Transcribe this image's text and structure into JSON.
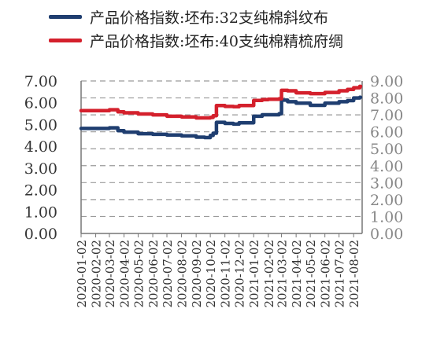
{
  "chart_data": {
    "type": "line",
    "title": "",
    "xlabel": "",
    "ylabel": "",
    "ylim_left": [
      0,
      7
    ],
    "ylim_right": [
      0,
      9
    ],
    "y_ticks_left": [
      "0.00",
      "1.00",
      "2.00",
      "3.00",
      "4.00",
      "5.00",
      "6.00",
      "7.00"
    ],
    "y_ticks_right": [
      "0.00",
      "1.00",
      "2.00",
      "3.00",
      "4.00",
      "5.00",
      "6.00",
      "7.00",
      "8.00",
      "9.00"
    ],
    "x_ticks": [
      "2020-01-02",
      "2020-02-02",
      "2020-03-02",
      "2020-04-02",
      "2020-05-02",
      "2020-06-02",
      "2020-07-02",
      "2020-08-02",
      "2020-09-02",
      "2020-10-02",
      "2020-11-02",
      "2020-12-02",
      "2021-01-02",
      "2021-02-02",
      "2021-03-02",
      "2021-04-02",
      "2021-05-02",
      "2021-06-02",
      "2021-07-02",
      "2021-08-02"
    ],
    "grid": "horizontal dashed",
    "legend_position": "top",
    "series": [
      {
        "name": "产品价格指数:坯布:32支纯棉斜纹布",
        "axis": "left",
        "color": "#1f3e70",
        "x": [
          "2020-01-02",
          "2020-02-20",
          "2020-03-02",
          "2020-03-20",
          "2020-04-02",
          "2020-05-02",
          "2020-06-02",
          "2020-07-02",
          "2020-08-02",
          "2020-09-02",
          "2020-09-20",
          "2020-10-02",
          "2020-10-08",
          "2020-10-15",
          "2020-11-02",
          "2020-11-20",
          "2020-12-02",
          "2021-01-02",
          "2021-01-20",
          "2021-02-02",
          "2021-02-25",
          "2021-03-02",
          "2021-03-15",
          "2021-04-02",
          "2021-05-02",
          "2021-06-02",
          "2021-07-02",
          "2021-07-20",
          "2021-08-02",
          "2021-08-15"
        ],
        "values": [
          4.82,
          4.82,
          4.85,
          4.72,
          4.65,
          4.58,
          4.55,
          4.52,
          4.48,
          4.42,
          4.4,
          4.5,
          4.6,
          5.1,
          5.05,
          5.02,
          5.08,
          5.38,
          5.45,
          5.45,
          5.5,
          6.12,
          6.05,
          5.98,
          5.88,
          5.98,
          6.05,
          6.1,
          6.22,
          6.25
        ]
      },
      {
        "name": "产品价格指数:坯布:40支纯棉精梳府绸",
        "axis": "right",
        "color": "#d4202c",
        "x": [
          "2020-01-02",
          "2020-02-20",
          "2020-03-02",
          "2020-03-20",
          "2020-04-02",
          "2020-05-02",
          "2020-06-02",
          "2020-07-02",
          "2020-08-02",
          "2020-09-02",
          "2020-09-20",
          "2020-10-02",
          "2020-10-08",
          "2020-10-15",
          "2020-11-02",
          "2020-11-20",
          "2020-12-02",
          "2021-01-02",
          "2021-01-20",
          "2021-02-02",
          "2021-02-25",
          "2021-03-02",
          "2021-03-15",
          "2021-04-02",
          "2021-05-02",
          "2021-06-02",
          "2021-07-02",
          "2021-07-20",
          "2021-08-02",
          "2021-08-15"
        ],
        "values": [
          7.25,
          7.25,
          7.3,
          7.18,
          7.12,
          7.05,
          7.0,
          6.92,
          6.88,
          6.82,
          6.82,
          6.85,
          6.95,
          7.55,
          7.5,
          7.48,
          7.55,
          7.85,
          7.9,
          7.92,
          7.95,
          8.45,
          8.42,
          8.3,
          8.25,
          8.32,
          8.42,
          8.5,
          8.6,
          8.68
        ]
      }
    ]
  }
}
